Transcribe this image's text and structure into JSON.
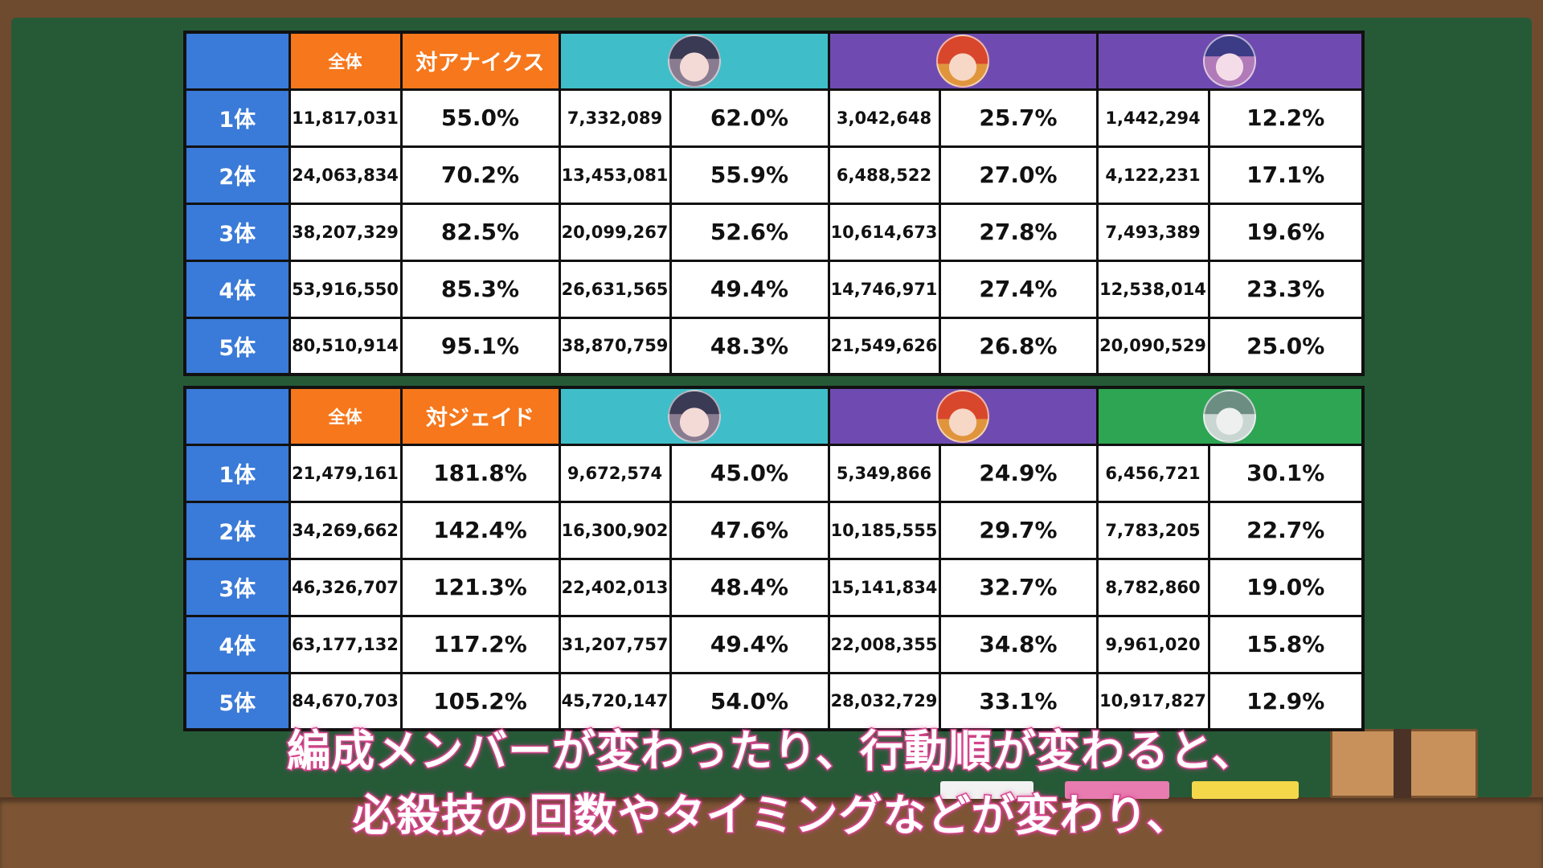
{
  "tables": [
    {
      "header": {
        "total_label": "全体",
        "vs_label": "対アナイクス",
        "characters": [
          {
            "icon": "character-avatar-purple-hat-girl-icon",
            "color": "#3fbec9"
          },
          {
            "icon": "character-avatar-red-hair-girl-icon",
            "color": "#6f4bb1"
          },
          {
            "icon": "character-avatar-pink-hair-girl-icon",
            "color": "#6f4bb1"
          }
        ]
      },
      "rows": [
        {
          "label": "1体",
          "total": "11,817,031",
          "vs": "55.0%",
          "c1": "7,332,089",
          "c1p": "62.0%",
          "c2": "3,042,648",
          "c2p": "25.7%",
          "c3": "1,442,294",
          "c3p": "12.2%"
        },
        {
          "label": "2体",
          "total": "24,063,834",
          "vs": "70.2%",
          "c1": "13,453,081",
          "c1p": "55.9%",
          "c2": "6,488,522",
          "c2p": "27.0%",
          "c3": "4,122,231",
          "c3p": "17.1%"
        },
        {
          "label": "3体",
          "total": "38,207,329",
          "vs": "82.5%",
          "c1": "20,099,267",
          "c1p": "52.6%",
          "c2": "10,614,673",
          "c2p": "27.8%",
          "c3": "7,493,389",
          "c3p": "19.6%"
        },
        {
          "label": "4体",
          "total": "53,916,550",
          "vs": "85.3%",
          "c1": "26,631,565",
          "c1p": "49.4%",
          "c2": "14,746,971",
          "c2p": "27.4%",
          "c3": "12,538,014",
          "c3p": "23.3%"
        },
        {
          "label": "5体",
          "total": "80,510,914",
          "vs": "95.1%",
          "c1": "38,870,759",
          "c1p": "48.3%",
          "c2": "21,549,626",
          "c2p": "26.8%",
          "c3": "20,090,529",
          "c3p": "25.0%"
        }
      ]
    },
    {
      "header": {
        "total_label": "全体",
        "vs_label": "対ジェイド",
        "characters": [
          {
            "icon": "character-avatar-purple-hat-girl-icon",
            "color": "#3fbec9"
          },
          {
            "icon": "character-avatar-red-hair-girl-icon",
            "color": "#6f4bb1"
          },
          {
            "icon": "character-avatar-silver-hair-boy-icon",
            "color": "#2da553"
          }
        ]
      },
      "rows": [
        {
          "label": "1体",
          "total": "21,479,161",
          "vs": "181.8%",
          "c1": "9,672,574",
          "c1p": "45.0%",
          "c2": "5,349,866",
          "c2p": "24.9%",
          "c3": "6,456,721",
          "c3p": "30.1%"
        },
        {
          "label": "2体",
          "total": "34,269,662",
          "vs": "142.4%",
          "c1": "16,300,902",
          "c1p": "47.6%",
          "c2": "10,185,555",
          "c2p": "29.7%",
          "c3": "7,783,205",
          "c3p": "22.7%"
        },
        {
          "label": "3体",
          "total": "46,326,707",
          "vs": "121.3%",
          "c1": "22,402,013",
          "c1p": "48.4%",
          "c2": "15,141,834",
          "c2p": "32.7%",
          "c3": "8,782,860",
          "c3p": "19.0%"
        },
        {
          "label": "4体",
          "total": "63,177,132",
          "vs": "117.2%",
          "c1": "31,207,757",
          "c1p": "49.4%",
          "c2": "22,008,355",
          "c2p": "34.8%",
          "c3": "9,961,020",
          "c3p": "15.8%"
        },
        {
          "label": "5体",
          "total": "84,670,703",
          "vs": "105.2%",
          "c1": "45,720,147",
          "c1p": "54.0%",
          "c2": "28,032,729",
          "c2p": "33.1%",
          "c3": "10,917,827",
          "c3p": "12.9%"
        }
      ]
    }
  ],
  "subtitle": {
    "line1": "編成メンバーが変わったり、行動順が変わると、",
    "line2": "必殺技の回数やタイミングなどが変わり、"
  }
}
